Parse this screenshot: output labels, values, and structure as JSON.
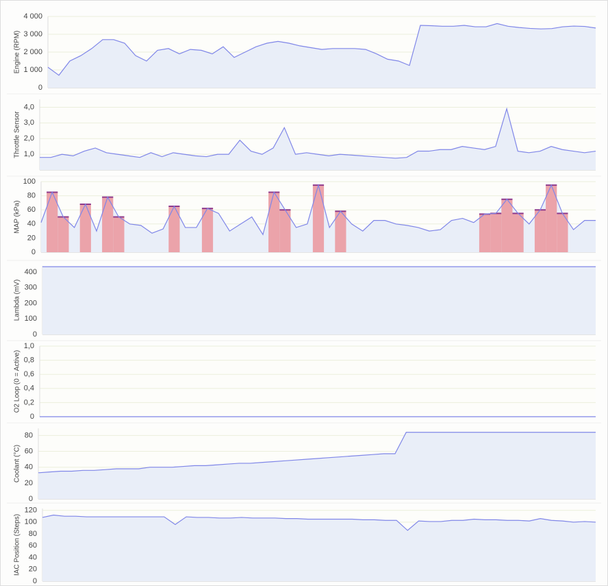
{
  "chart_data": [
    {
      "type": "area",
      "y_label": "Engine (RPM)",
      "color": "#7f86e8",
      "fill": "#e9eef8",
      "grid": true,
      "ylim": [
        0,
        4000
      ],
      "yticks": [
        0,
        {
          "value": 1000,
          "label": "1 000"
        },
        {
          "value": 2000,
          "label": "2 000"
        },
        {
          "value": 3000,
          "label": "3 000"
        },
        {
          "value": 4000,
          "label": "4 000"
        }
      ],
      "values": [
        1150,
        700,
        1500,
        1800,
        2200,
        2700,
        2700,
        2500,
        1800,
        1500,
        2100,
        2200,
        1900,
        2150,
        2100,
        1900,
        2300,
        1700,
        2000,
        2300,
        2500,
        2600,
        2500,
        2350,
        2250,
        2150,
        2200,
        2200,
        2200,
        2150,
        1900,
        1600,
        1500,
        1250,
        3500,
        3480,
        3450,
        3450,
        3500,
        3420,
        3420,
        3600,
        3450,
        3380,
        3330,
        3300,
        3320,
        3420,
        3460,
        3440,
        3350
      ]
    },
    {
      "type": "area",
      "y_label": "Throttle Sensor",
      "color": "#7f86e8",
      "fill": "#e9eef8",
      "grid": true,
      "ylim": [
        0,
        4.5
      ],
      "yticks": [
        {
          "value": 1,
          "label": "1,0"
        },
        {
          "value": 2,
          "label": "2,0"
        },
        {
          "value": 3,
          "label": "3,0"
        },
        {
          "value": 4,
          "label": "4,0"
        }
      ],
      "values": [
        0.8,
        0.8,
        1.0,
        0.9,
        1.2,
        1.4,
        1.1,
        1.0,
        0.9,
        0.8,
        1.1,
        0.85,
        1.1,
        1.0,
        0.9,
        0.85,
        1.0,
        1.0,
        1.9,
        1.2,
        1.0,
        1.4,
        2.7,
        1.0,
        1.1,
        1.0,
        0.9,
        1.0,
        0.95,
        0.9,
        0.85,
        0.8,
        0.75,
        0.8,
        1.2,
        1.2,
        1.3,
        1.3,
        1.5,
        1.4,
        1.3,
        1.5,
        3.9,
        1.2,
        1.1,
        1.2,
        1.5,
        1.3,
        1.2,
        1.1,
        1.2
      ]
    },
    {
      "type": "area",
      "y_label": "MAP (kPa)",
      "color": "#7f86e8",
      "fill": "#e9eef8",
      "grid": true,
      "highlight_color": "#eba3aa",
      "highlight_line": "#8e3a8c",
      "ylim": [
        0,
        100
      ],
      "yticks": [
        0,
        20,
        40,
        60,
        80,
        100
      ],
      "values": [
        42,
        85,
        50,
        35,
        68,
        30,
        78,
        50,
        40,
        38,
        27,
        33,
        65,
        35,
        35,
        62,
        55,
        30,
        40,
        50,
        25,
        85,
        60,
        35,
        40,
        95,
        35,
        58,
        40,
        30,
        45,
        45,
        40,
        38,
        35,
        30,
        32,
        45,
        48,
        42,
        54,
        55,
        75,
        55,
        40,
        60,
        95,
        55,
        32,
        45,
        45
      ],
      "highlighted": [
        false,
        true,
        true,
        false,
        true,
        false,
        true,
        true,
        false,
        false,
        false,
        false,
        true,
        false,
        false,
        true,
        false,
        false,
        false,
        false,
        false,
        true,
        true,
        false,
        false,
        true,
        false,
        true,
        false,
        false,
        false,
        false,
        false,
        false,
        false,
        false,
        false,
        false,
        false,
        false,
        true,
        true,
        true,
        true,
        false,
        true,
        true,
        true,
        false,
        false,
        false
      ]
    },
    {
      "type": "area",
      "y_label": "Lambda (mV)",
      "color": "#7f86e8",
      "fill": "#e9eef8",
      "grid": true,
      "ylim": [
        0,
        440
      ],
      "yticks": [
        0,
        100,
        200,
        300,
        400
      ],
      "values": [
        435,
        435
      ]
    },
    {
      "type": "area",
      "y_label": "O2 Loop (0 = Active)",
      "color": "#7f86e8",
      "fill": "#e9eef8",
      "grid": true,
      "ylim": [
        0,
        1
      ],
      "yticks": [
        0,
        {
          "value": 0.2,
          "label": "0,2"
        },
        {
          "value": 0.4,
          "label": "0,4"
        },
        {
          "value": 0.6,
          "label": "0,6"
        },
        {
          "value": 0.8,
          "label": "0,8"
        },
        {
          "value": 1,
          "label": "1,0"
        }
      ],
      "values": [
        0,
        0
      ]
    },
    {
      "type": "area",
      "y_label": "Coolant (°C)",
      "color": "#7f86e8",
      "fill": "#e9eef8",
      "grid": true,
      "ylim": [
        0,
        89
      ],
      "yticks": [
        0,
        20,
        40,
        60,
        80
      ],
      "values": [
        33,
        34,
        35,
        35,
        36,
        36,
        37,
        38,
        38,
        38,
        40,
        40,
        40,
        41,
        42,
        42,
        43,
        44,
        45,
        45,
        46,
        47,
        48,
        49,
        50,
        51,
        52,
        53,
        54,
        55,
        56,
        57,
        57,
        84,
        84,
        84,
        84,
        84,
        84,
        84,
        84,
        84,
        84,
        84,
        84,
        84,
        84,
        84,
        84,
        84,
        84
      ]
    },
    {
      "type": "area",
      "y_label": "IAC Position (Steps)",
      "color": "#7f86e8",
      "fill": "#e9eef8",
      "grid": true,
      "ylim": [
        0,
        123
      ],
      "yticks": [
        0,
        20,
        40,
        60,
        80,
        100,
        120
      ],
      "values": [
        108,
        112,
        110,
        110,
        109,
        109,
        109,
        109,
        109,
        109,
        109,
        109,
        96,
        109,
        108,
        108,
        107,
        107,
        108,
        107,
        107,
        107,
        106,
        106,
        105,
        105,
        105,
        105,
        105,
        104,
        104,
        103,
        103,
        86,
        102,
        101,
        101,
        103,
        103,
        105,
        104,
        104,
        103,
        103,
        102,
        106,
        103,
        102,
        100,
        101,
        100
      ]
    }
  ]
}
